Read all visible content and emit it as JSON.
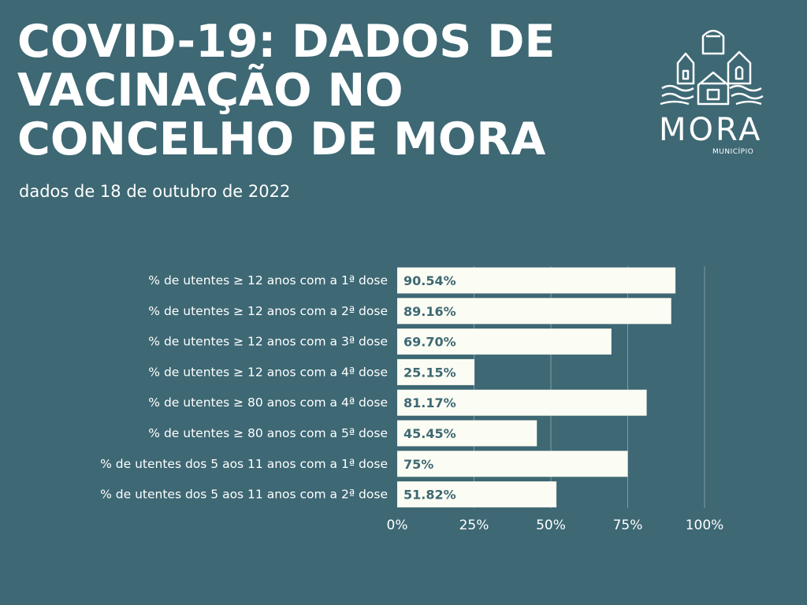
{
  "header": {
    "title": "COVID-19: DADOS DE VACINAÇÃO NO CONCELHO DE MORA",
    "subtitle": "dados de 18 de outubro de 2022"
  },
  "logo": {
    "word": "MORA",
    "sub": "MUNICÍPIO",
    "icon": "municipality-emblem-icon"
  },
  "colors": {
    "background": "#3d6874",
    "bar": "#fbfcf3",
    "text": "#ffffff",
    "value_text": "#3d6874"
  },
  "chart_data": {
    "type": "bar",
    "orientation": "horizontal",
    "categories": [
      "% de utentes ≥ 12 anos com a 1ª dose",
      "% de utentes ≥ 12 anos com a 2ª dose",
      "% de utentes  ≥ 12 anos com a 3ª dose",
      "% de utentes ≥ 12 anos com a 4ª dose",
      "% de utentes ≥ 80 anos com a 4ª dose",
      "% de utentes ≥ 80 anos com a 5ª dose",
      "% de utentes dos 5 aos 11 anos com a 1ª dose",
      "% de utentes dos 5 aos 11 anos com a 2ª dose"
    ],
    "values": [
      90.54,
      89.16,
      69.7,
      25.15,
      81.17,
      45.45,
      75,
      51.82
    ],
    "value_labels": [
      "90.54%",
      "89.16%",
      "69.70%",
      "25.15%",
      "81.17%",
      "45.45%",
      "75%",
      "51.82%"
    ],
    "xlim": [
      0,
      100
    ],
    "xticks": [
      0,
      25,
      50,
      75,
      100
    ],
    "xtick_labels": [
      "0%",
      "25%",
      "50%",
      "75%",
      "100%"
    ],
    "grid": true
  }
}
